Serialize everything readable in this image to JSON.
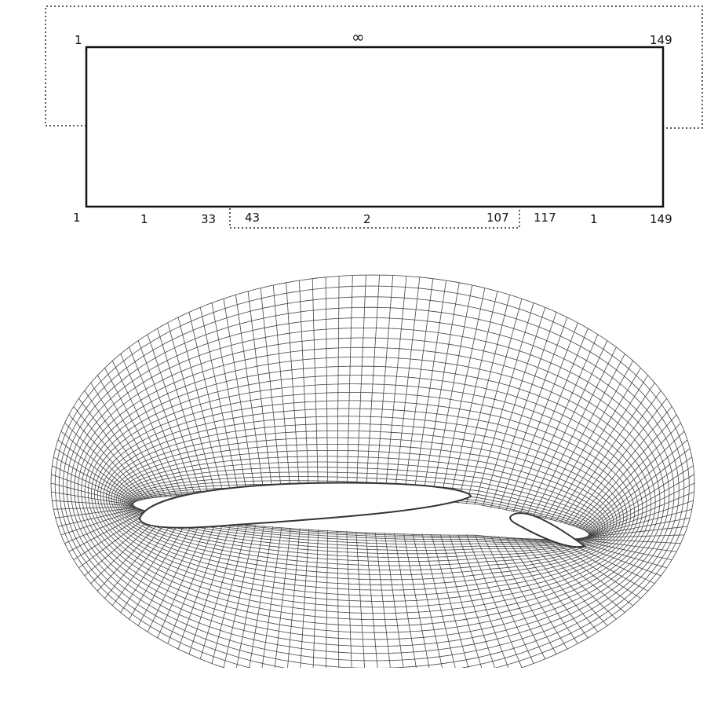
{
  "domain": {
    "top_labels": [
      "1",
      "∞",
      "149"
    ],
    "bottom_labels": [
      "1",
      "1",
      "33",
      "43",
      "2",
      "107",
      "117",
      "1",
      "149"
    ]
  }
}
